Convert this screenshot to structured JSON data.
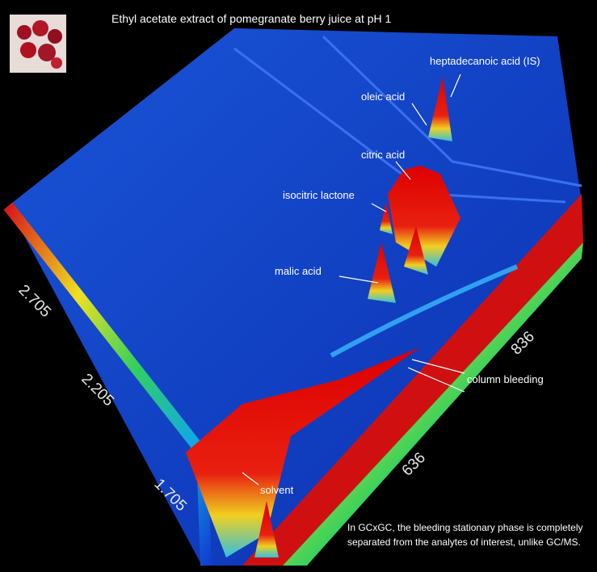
{
  "header": {
    "title": "Ethyl acetate extract of pomegranate berry juice at pH 1"
  },
  "annotations": [
    "heptadecanoic acid (IS)",
    "oleic acid",
    "citric acid",
    "isocitric lactone",
    "malic acid",
    "column bleeding",
    "solvent"
  ],
  "axis_labels": {
    "first_dimension": [
      "636",
      "836"
    ],
    "second_dimension": [
      "1.705",
      "2.205",
      "2.705"
    ]
  },
  "footnote": [
    "In GCxGC, the bleeding stationary phase is completely",
    "separated from the analytes of interest, unlike GC/MS."
  ]
}
